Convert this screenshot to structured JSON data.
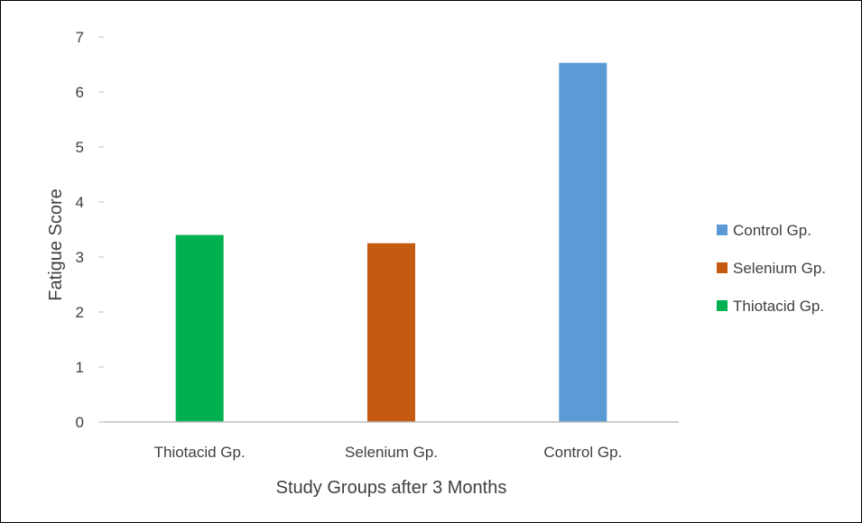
{
  "chart_data": {
    "type": "bar",
    "title": "",
    "xlabel": "Study Groups after 3 Months",
    "ylabel": "Fatigue Score",
    "ylim": [
      0,
      7
    ],
    "yticks": [
      0,
      1,
      2,
      3,
      4,
      5,
      6,
      7
    ],
    "grid": false,
    "legend_position": "right",
    "categories": [
      "Thiotacid Gp.",
      "Selenium Gp.",
      "Control Gp."
    ],
    "series": [
      {
        "name": "Thiotacid Gp.",
        "color": "#00b050",
        "values": [
          3.4,
          null,
          null
        ]
      },
      {
        "name": "Selenium Gp.",
        "color": "#c55a11",
        "values": [
          null,
          3.25,
          null
        ]
      },
      {
        "name": "Control Gp.",
        "color": "#5b9bd5",
        "values": [
          null,
          null,
          6.53
        ]
      }
    ],
    "legend_order": [
      "Control Gp.",
      "Selenium Gp.",
      "Thiotacid Gp."
    ]
  }
}
